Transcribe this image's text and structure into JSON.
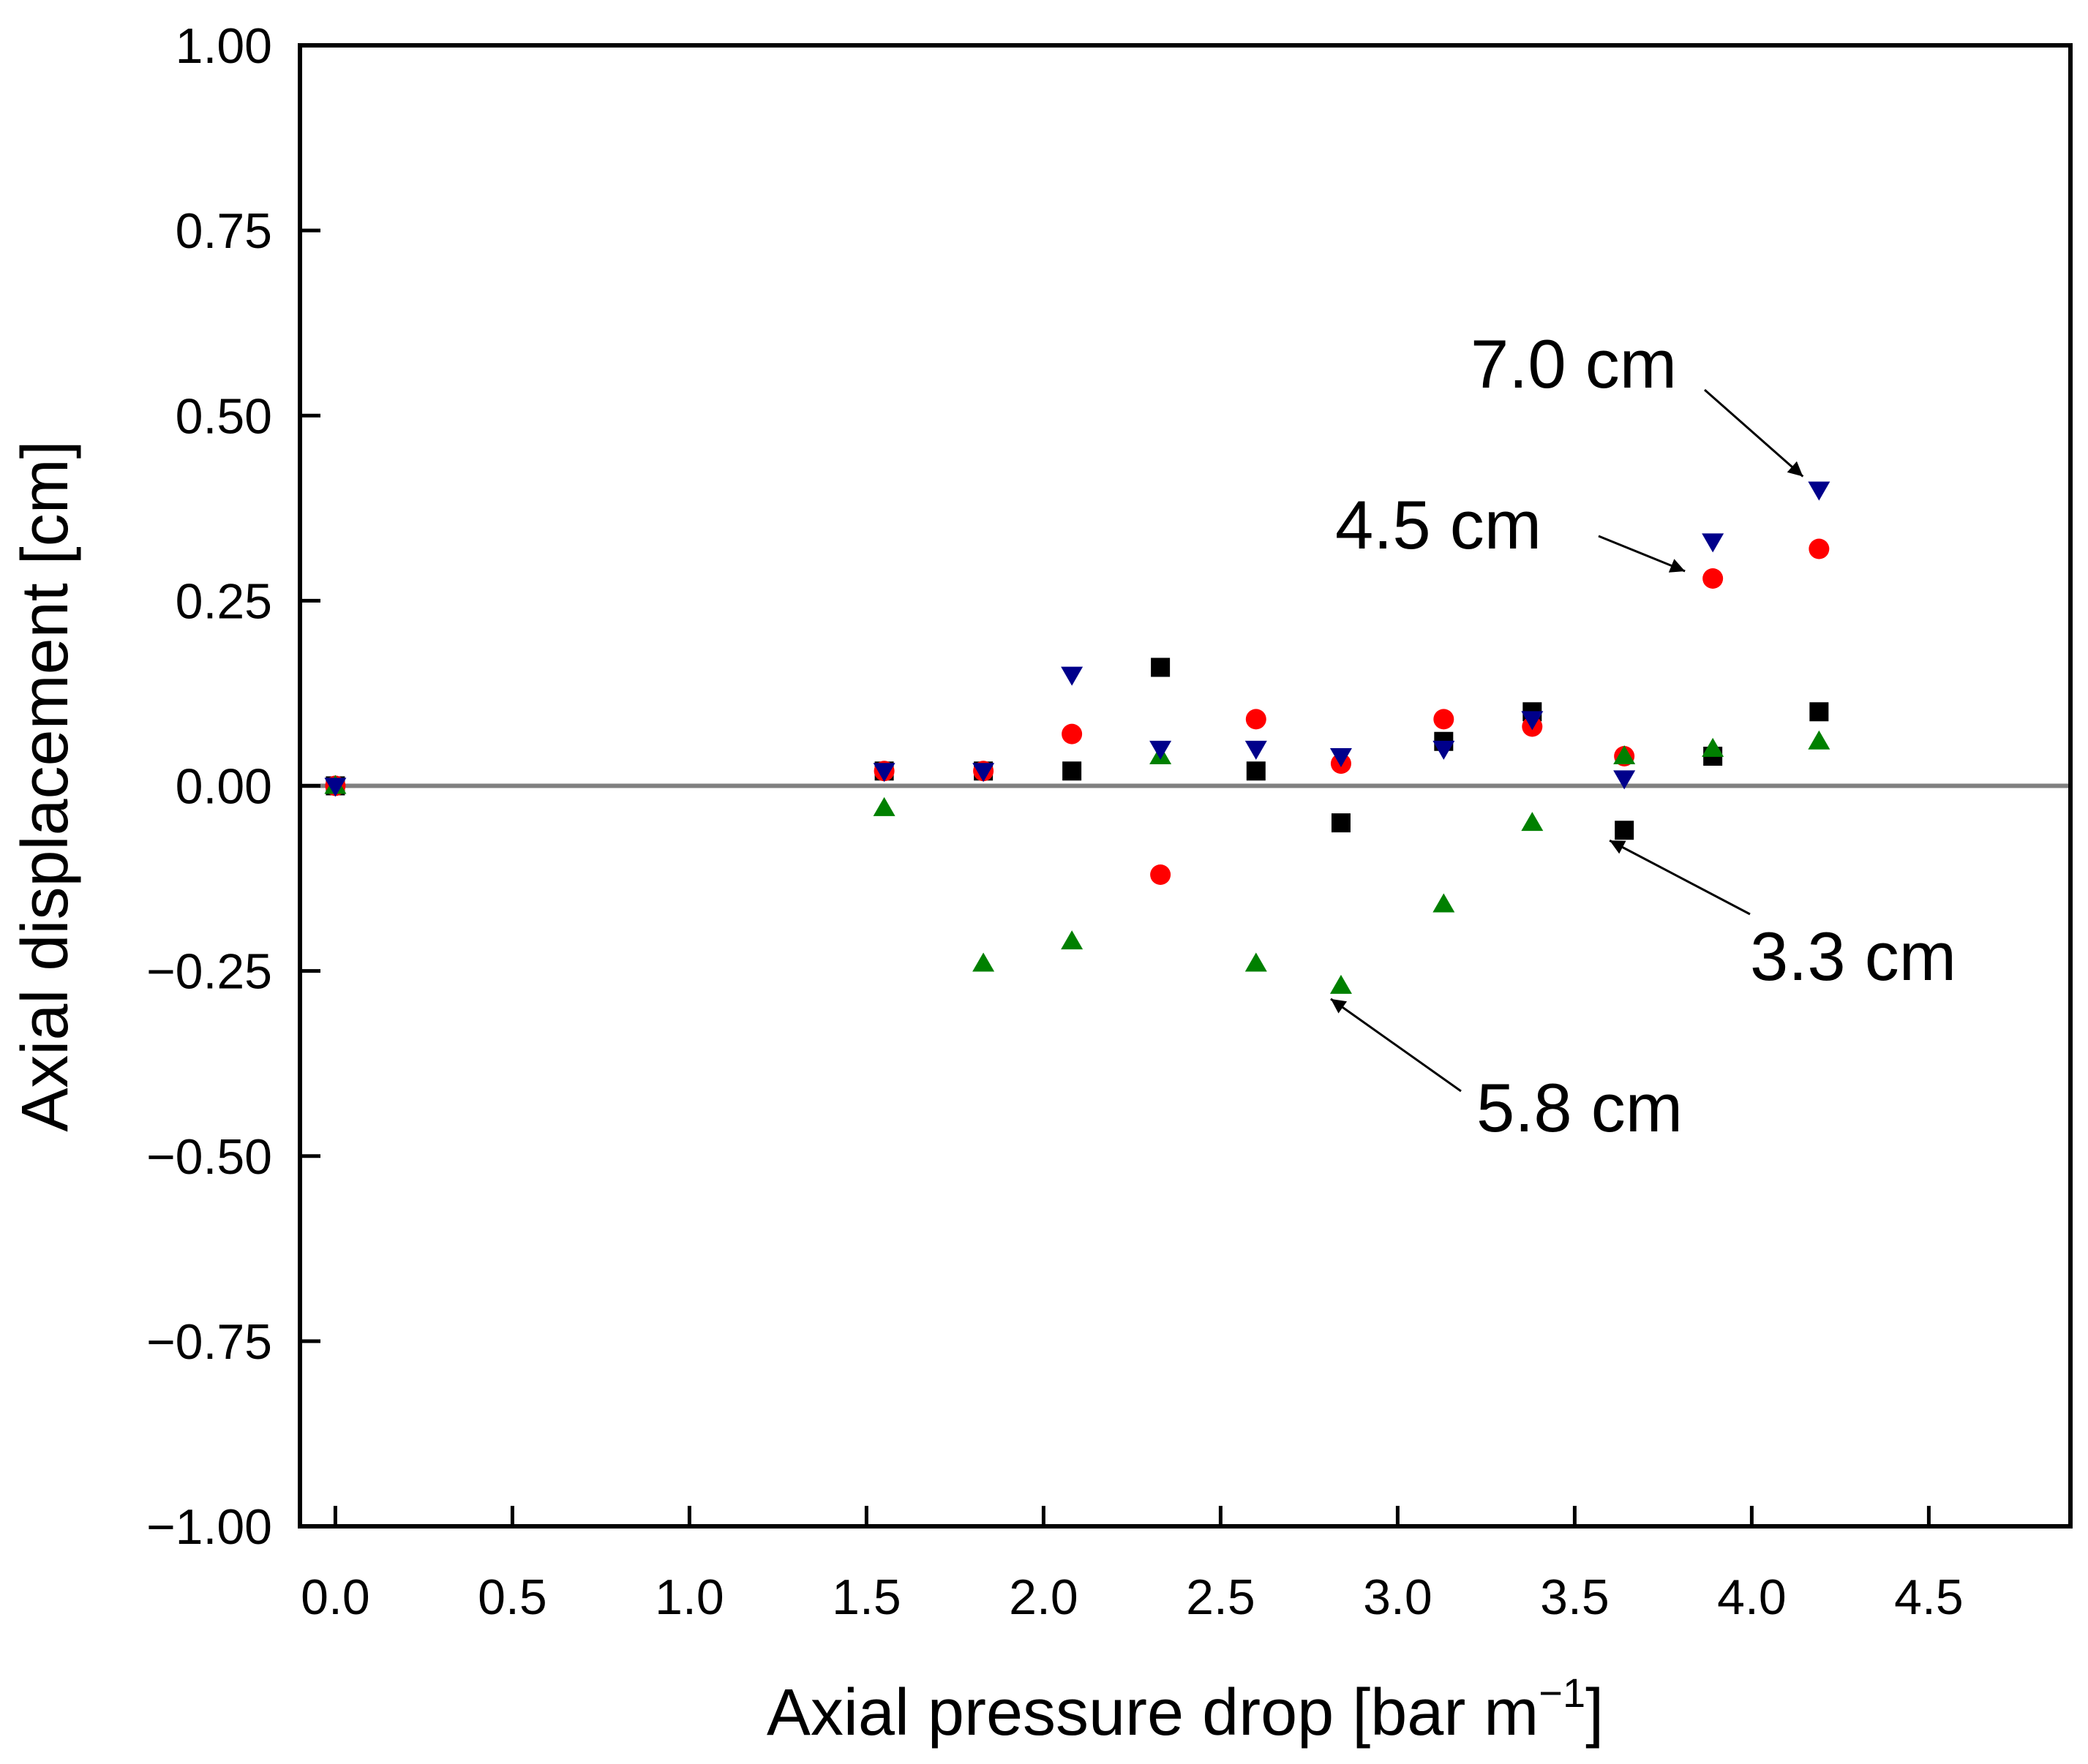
{
  "chart_data": {
    "type": "scatter",
    "title": "",
    "xlabel": "Axial pressure drop [bar m",
    "xlabel_sup": "−1",
    "xlabel_end": "]",
    "ylabel": "Axial displacement [cm]",
    "xlim": [
      -0.1,
      4.9
    ],
    "ylim": [
      -1.0,
      1.0
    ],
    "xticks": [
      0.0,
      0.5,
      1.0,
      1.5,
      2.0,
      2.5,
      3.0,
      3.5,
      4.0,
      4.5
    ],
    "xtick_labels": [
      "0.0",
      "0.5",
      "1.0",
      "1.5",
      "2.0",
      "2.5",
      "3.0",
      "3.5",
      "4.0",
      "4.5"
    ],
    "yticks": [
      1.0,
      0.75,
      0.5,
      0.25,
      0.0,
      -0.25,
      -0.5,
      -0.75,
      -1.0
    ],
    "ytick_labels": [
      "1.00",
      "0.75",
      "0.50",
      "0.25",
      "0.00",
      "−0.25",
      "−0.50",
      "−0.75",
      "−1.00"
    ],
    "zero_line": 0.0,
    "grid": false,
    "series": [
      {
        "name": "3.3 cm",
        "marker": "square",
        "color": "#000000",
        "x": [
          0.0,
          1.55,
          1.83,
          2.08,
          2.33,
          2.6,
          2.84,
          3.13,
          3.38,
          3.64,
          3.89,
          4.19
        ],
        "y": [
          0.0,
          0.02,
          0.02,
          0.02,
          0.16,
          0.02,
          -0.05,
          0.06,
          0.1,
          -0.06,
          0.04,
          0.1
        ]
      },
      {
        "name": "4.5 cm",
        "marker": "circle",
        "color": "#ff0000",
        "x": [
          0.0,
          1.55,
          1.83,
          2.08,
          2.33,
          2.6,
          2.84,
          3.13,
          3.38,
          3.64,
          3.89,
          4.19
        ],
        "y": [
          0.0,
          0.02,
          0.02,
          0.07,
          -0.12,
          0.09,
          0.03,
          0.09,
          0.08,
          0.04,
          0.28,
          0.32
        ]
      },
      {
        "name": "5.8 cm",
        "marker": "triangle-up",
        "color": "#008000",
        "x": [
          0.0,
          1.55,
          1.83,
          2.08,
          2.33,
          2.6,
          2.84,
          3.13,
          3.38,
          3.64,
          3.89,
          4.19
        ],
        "y": [
          0.0,
          -0.03,
          -0.24,
          -0.21,
          0.04,
          -0.24,
          -0.27,
          -0.16,
          -0.05,
          0.04,
          0.05,
          0.06
        ]
      },
      {
        "name": "7.0 cm",
        "marker": "triangle-down",
        "color": "#00008b",
        "x": [
          0.0,
          1.55,
          1.83,
          2.08,
          2.33,
          2.6,
          2.84,
          3.13,
          3.38,
          3.64,
          3.89,
          4.19
        ],
        "y": [
          0.0,
          0.02,
          0.02,
          0.15,
          0.05,
          0.05,
          0.04,
          0.05,
          0.09,
          0.01,
          0.33,
          0.4
        ]
      }
    ],
    "annotations": [
      {
        "text": "7.0 cm",
        "series": "7.0 cm",
        "target": [
          4.19,
          0.4
        ]
      },
      {
        "text": "4.5 cm",
        "series": "4.5 cm",
        "target": [
          3.89,
          0.28
        ]
      },
      {
        "text": "3.3 cm",
        "series": "3.3 cm",
        "target": [
          3.64,
          -0.06
        ]
      },
      {
        "text": "5.8 cm",
        "series": "5.8 cm",
        "target": [
          2.84,
          -0.27
        ]
      }
    ]
  }
}
